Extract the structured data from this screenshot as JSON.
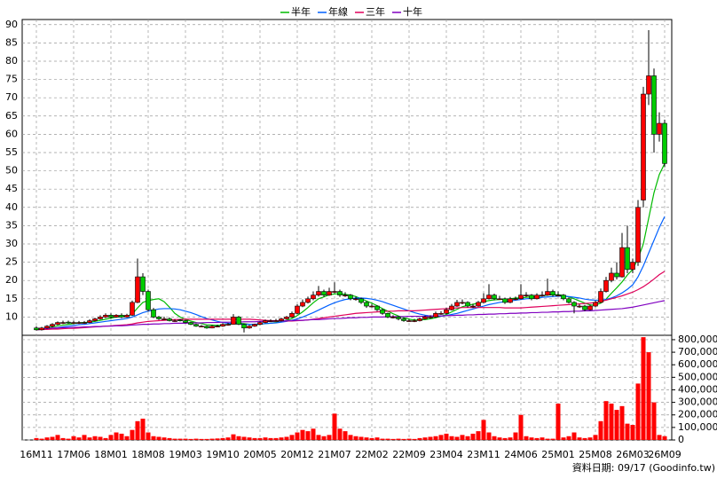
{
  "chart_data": {
    "type": "candlestick",
    "categories": [
      "16M11",
      null,
      null,
      null,
      null,
      null,
      null,
      "17M06",
      null,
      null,
      null,
      null,
      null,
      null,
      "18M01",
      null,
      null,
      null,
      null,
      null,
      null,
      "18M08",
      null,
      null,
      null,
      null,
      null,
      null,
      "19M03",
      null,
      null,
      null,
      null,
      null,
      null,
      "19M10",
      null,
      null,
      null,
      null,
      null,
      null,
      "20M05",
      null,
      null,
      null,
      null,
      null,
      null,
      "20M12",
      null,
      null,
      null,
      null,
      null,
      null,
      "21M07",
      null,
      null,
      null,
      null,
      null,
      null,
      "22M02",
      null,
      null,
      null,
      null,
      null,
      null,
      "22M09",
      null,
      null,
      null,
      null,
      null,
      null,
      "23M04",
      null,
      null,
      null,
      null,
      null,
      null,
      "23M11",
      null,
      null,
      null,
      null,
      null,
      null,
      "24M06",
      null,
      null,
      null,
      null,
      null,
      null,
      "25M01",
      null,
      null,
      null,
      null,
      null,
      null,
      "25M08",
      null,
      null,
      null,
      null,
      null,
      null,
      "26M03",
      null,
      null,
      null,
      null,
      null,
      "26M09"
    ],
    "ohlc": [
      [
        7,
        7.5,
        6.3,
        6.5
      ],
      [
        6.5,
        7.3,
        6.3,
        7
      ],
      [
        7,
        7.8,
        6.8,
        7.5
      ],
      [
        7.5,
        8.3,
        7.2,
        8
      ],
      [
        8,
        8.8,
        7.8,
        8.5
      ],
      [
        8.5,
        9,
        8.1,
        8.5
      ],
      [
        8.6,
        9,
        8.2,
        8.5
      ],
      [
        8.5,
        9,
        8.1,
        8.5
      ],
      [
        8.4,
        8.9,
        8.1,
        8.5
      ],
      [
        8.5,
        8.9,
        8.2,
        8.5
      ],
      [
        8.5,
        9.4,
        8.3,
        9
      ],
      [
        9,
        9.8,
        8.8,
        9.5
      ],
      [
        9.5,
        10.5,
        9.3,
        10
      ],
      [
        10,
        11,
        9.7,
        10.5
      ],
      [
        10.5,
        11,
        9.6,
        10
      ],
      [
        10,
        10.8,
        9.8,
        10.5
      ],
      [
        10.5,
        11,
        9.7,
        10
      ],
      [
        10,
        10.9,
        9.8,
        10.5
      ],
      [
        10.5,
        14.5,
        10.3,
        14
      ],
      [
        14,
        26,
        13.8,
        21
      ],
      [
        21,
        22,
        16,
        17
      ],
      [
        17,
        17.5,
        11.5,
        12
      ],
      [
        12,
        12.5,
        9.7,
        10
      ],
      [
        10,
        10.3,
        9.2,
        9.5
      ],
      [
        9.5,
        10.1,
        9.2,
        9.5
      ],
      [
        9.5,
        9.9,
        8.8,
        9
      ],
      [
        9,
        9.4,
        8.7,
        9
      ],
      [
        9.2,
        9.5,
        8.8,
        9
      ],
      [
        9,
        9.2,
        8.3,
        8.5
      ],
      [
        8.5,
        8.7,
        7.8,
        8
      ],
      [
        8,
        8.2,
        7.3,
        7.5
      ],
      [
        7.5,
        7.8,
        7.2,
        7.5
      ],
      [
        7.5,
        7.7,
        6.8,
        7
      ],
      [
        7,
        7.8,
        6.9,
        7.5
      ],
      [
        7.5,
        7.9,
        7.2,
        7.5
      ],
      [
        7.5,
        8.3,
        7.3,
        8
      ],
      [
        8,
        8.4,
        7.6,
        8
      ],
      [
        8,
        10.8,
        7.9,
        10
      ],
      [
        10,
        10.3,
        7.8,
        8
      ],
      [
        8,
        8.2,
        5.8,
        7
      ],
      [
        7,
        7.8,
        6.8,
        7.5
      ],
      [
        7.5,
        8.2,
        7.3,
        8
      ],
      [
        8,
        8.8,
        7.8,
        8.5
      ],
      [
        8.5,
        9.3,
        8.3,
        9
      ],
      [
        9,
        9.4,
        8.6,
        9
      ],
      [
        9,
        9.5,
        8.7,
        9
      ],
      [
        9,
        9.8,
        8.8,
        9.5
      ],
      [
        9.5,
        10.3,
        9.3,
        10
      ],
      [
        10,
        11.5,
        9.8,
        11
      ],
      [
        11,
        13.5,
        10.8,
        13
      ],
      [
        13,
        14.8,
        12.7,
        14
      ],
      [
        14,
        15.6,
        13.7,
        15
      ],
      [
        15,
        17,
        14.6,
        16
      ],
      [
        16,
        18.5,
        15.6,
        17
      ],
      [
        17,
        17.5,
        15.5,
        16
      ],
      [
        16,
        18,
        15.8,
        17
      ],
      [
        17,
        19.5,
        16.5,
        17
      ],
      [
        17,
        17.5,
        15.5,
        16
      ],
      [
        16,
        16.8,
        15.5,
        16
      ],
      [
        16,
        16.3,
        14.6,
        15
      ],
      [
        15,
        15.6,
        14.5,
        15
      ],
      [
        15,
        15.3,
        13.6,
        14
      ],
      [
        14,
        14.3,
        12.5,
        13
      ],
      [
        13,
        13.6,
        12.6,
        13
      ],
      [
        13,
        13.2,
        11.6,
        12
      ],
      [
        12,
        12.3,
        10.6,
        11
      ],
      [
        11,
        11.2,
        9.7,
        10
      ],
      [
        10,
        10.5,
        9.6,
        10
      ],
      [
        10,
        10.2,
        9.1,
        9.5
      ],
      [
        9.5,
        9.8,
        8.7,
        9
      ],
      [
        9,
        9.4,
        8.7,
        9
      ],
      [
        9,
        9.5,
        8.6,
        9
      ],
      [
        9,
        9.9,
        8.8,
        9.5
      ],
      [
        9.5,
        10.4,
        9.3,
        10
      ],
      [
        10,
        10.5,
        9.6,
        10
      ],
      [
        10,
        11.5,
        9.8,
        11
      ],
      [
        11,
        11.6,
        10.6,
        11
      ],
      [
        11,
        12.5,
        10.8,
        12
      ],
      [
        12,
        13.6,
        11.8,
        13
      ],
      [
        13,
        14.7,
        12.8,
        14
      ],
      [
        14,
        14.8,
        13.5,
        14
      ],
      [
        14,
        14.3,
        12.6,
        13
      ],
      [
        13,
        13.6,
        12.5,
        13
      ],
      [
        13,
        14.4,
        12.8,
        14
      ],
      [
        14,
        16.5,
        13.8,
        15
      ],
      [
        15,
        19,
        14.8,
        16
      ],
      [
        16,
        16.4,
        14.6,
        15
      ],
      [
        15,
        15.8,
        14.7,
        15
      ],
      [
        15,
        15.3,
        13.6,
        14
      ],
      [
        14,
        15.5,
        13.8,
        15
      ],
      [
        15,
        15.6,
        14.6,
        15
      ],
      [
        15,
        19,
        14.8,
        16
      ],
      [
        16,
        16.8,
        15.5,
        16
      ],
      [
        16,
        16.3,
        14.6,
        15
      ],
      [
        15,
        16.5,
        14.8,
        16
      ],
      [
        16,
        17,
        15.6,
        16
      ],
      [
        16,
        20.5,
        15.8,
        17
      ],
      [
        17,
        17.5,
        15.6,
        16
      ],
      [
        16,
        17,
        15.7,
        16
      ],
      [
        16,
        16.3,
        14.6,
        15
      ],
      [
        15,
        15.3,
        13.7,
        14
      ],
      [
        14,
        14.3,
        11,
        13
      ],
      [
        13,
        13.5,
        12.5,
        13
      ],
      [
        13,
        13.3,
        11.6,
        12
      ],
      [
        12,
        13.4,
        11.8,
        13
      ],
      [
        13,
        14.5,
        12.7,
        14
      ],
      [
        14,
        17.8,
        13.8,
        17
      ],
      [
        17,
        21,
        16.7,
        20
      ],
      [
        20,
        23.5,
        19.5,
        22
      ],
      [
        22,
        25,
        20.3,
        21
      ],
      [
        21,
        33,
        20.8,
        29
      ],
      [
        29,
        35,
        22,
        23
      ],
      [
        23,
        26,
        22,
        25
      ],
      [
        25,
        42,
        24,
        40
      ],
      [
        42,
        73,
        40,
        71
      ],
      [
        71,
        88.5,
        68,
        76
      ],
      [
        76,
        78,
        55,
        60
      ],
      [
        60,
        66,
        58,
        63
      ],
      [
        63,
        64,
        51,
        52
      ]
    ],
    "up_color": "#ff0000",
    "down_color": "#00cc00",
    "volume_color": "#ff0000",
    "volume": [
      15000,
      10000,
      20000,
      25000,
      40000,
      15000,
      10000,
      30000,
      20000,
      40000,
      20000,
      30000,
      25000,
      15000,
      40000,
      60000,
      50000,
      30000,
      80000,
      150000,
      170000,
      60000,
      30000,
      25000,
      20000,
      15000,
      10000,
      10000,
      10000,
      8000,
      10000,
      8000,
      8000,
      10000,
      12000,
      15000,
      20000,
      45000,
      30000,
      25000,
      20000,
      15000,
      15000,
      20000,
      15000,
      15000,
      20000,
      25000,
      40000,
      60000,
      80000,
      70000,
      90000,
      40000,
      30000,
      40000,
      210000,
      90000,
      70000,
      40000,
      30000,
      25000,
      20000,
      15000,
      20000,
      10000,
      10000,
      8000,
      10000,
      8000,
      10000,
      8000,
      15000,
      20000,
      25000,
      30000,
      40000,
      50000,
      30000,
      25000,
      40000,
      30000,
      50000,
      70000,
      160000,
      60000,
      30000,
      20000,
      15000,
      20000,
      60000,
      200000,
      30000,
      20000,
      15000,
      20000,
      10000,
      10000,
      290000,
      20000,
      30000,
      60000,
      20000,
      15000,
      20000,
      40000,
      150000,
      310000,
      290000,
      240000,
      270000,
      130000,
      120000,
      450000,
      820000,
      700000,
      300000,
      40000,
      30000
    ],
    "series": [
      {
        "name": "半年",
        "color": "#00bb00",
        "values": [
          6.5,
          6.7,
          7,
          7.3,
          7.6,
          7.8,
          8,
          8.2,
          8.4,
          8.5,
          8.6,
          8.8,
          9.1,
          9.4,
          9.7,
          10,
          10.1,
          10.2,
          10.8,
          12.5,
          14,
          14.5,
          14.8,
          15,
          14.2,
          12.7,
          11,
          10,
          9.3,
          8.9,
          8.5,
          8.2,
          7.9,
          7.8,
          7.7,
          7.8,
          7.9,
          8.2,
          8.3,
          8.2,
          8,
          7.9,
          8,
          8.2,
          8.3,
          8.5,
          8.8,
          9.1,
          9.6,
          10.4,
          11.4,
          12.6,
          13.9,
          15,
          15.5,
          16.1,
          16.3,
          16.4,
          16.2,
          16,
          15.6,
          15,
          14.4,
          13.8,
          13.1,
          12.3,
          11.6,
          10.9,
          10.3,
          9.8,
          9.4,
          9.2,
          9.2,
          9.3,
          9.5,
          9.8,
          10.2,
          10.7,
          11.4,
          12.1,
          12.8,
          13.2,
          13.5,
          13.8,
          14.2,
          14.5,
          14.7,
          14.8,
          14.9,
          15,
          15.2,
          15.2,
          15.4,
          15.5,
          15.6,
          15.8,
          16,
          16.1,
          16.1,
          15.9,
          15.5,
          15,
          14.4,
          13.8,
          13.3,
          13.3,
          13.8,
          14.9,
          16.5,
          18,
          19.6,
          21.5,
          23,
          26,
          30,
          37,
          44,
          49,
          52
        ]
      },
      {
        "name": "年線",
        "color": "#0060ff",
        "values": [
          6.5,
          6.6,
          6.7,
          6.9,
          7.1,
          7.3,
          7.5,
          7.7,
          7.9,
          8,
          8.2,
          8.4,
          8.6,
          8.8,
          9,
          9.2,
          9.4,
          9.6,
          10,
          10.6,
          11.2,
          11.6,
          11.9,
          12.2,
          12.3,
          12.3,
          12.2,
          12,
          11.6,
          11.2,
          10.7,
          10.1,
          9.6,
          9.2,
          8.8,
          8.5,
          8.3,
          8.2,
          8.1,
          8,
          8,
          8,
          8.1,
          8.2,
          8.3,
          8.4,
          8.6,
          8.8,
          9.1,
          9.5,
          10,
          10.6,
          11.2,
          11.9,
          12.6,
          13.3,
          13.9,
          14.4,
          14.8,
          15,
          15.2,
          15.2,
          15.1,
          14.9,
          14.6,
          14.2,
          13.7,
          13.2,
          12.7,
          12.2,
          11.7,
          11.2,
          10.8,
          10.5,
          10.3,
          10.2,
          10.2,
          10.4,
          10.7,
          11,
          11.4,
          11.8,
          12.2,
          12.6,
          13,
          13.4,
          13.7,
          14,
          14.2,
          14.4,
          14.6,
          14.8,
          15,
          15.1,
          15.2,
          15.4,
          15.5,
          15.6,
          15.7,
          15.7,
          15.6,
          15.4,
          15.2,
          14.9,
          14.7,
          14.6,
          14.6,
          14.8,
          15.2,
          15.8,
          16.6,
          17.6,
          18.8,
          21,
          24,
          27.5,
          31,
          34.5,
          37.5
        ]
      },
      {
        "name": "三年",
        "color": "#e0005a",
        "values": [
          6.5,
          6.6,
          6.6,
          6.7,
          6.7,
          6.8,
          6.9,
          6.9,
          7,
          7.1,
          7.2,
          7.3,
          7.4,
          7.5,
          7.6,
          7.7,
          7.8,
          7.9,
          8.1,
          8.4,
          8.6,
          8.8,
          8.9,
          9,
          9.1,
          9.2,
          9.3,
          9.3,
          9.4,
          9.4,
          9.4,
          9.4,
          9.4,
          9.4,
          9.4,
          9.4,
          9.4,
          9.4,
          9.4,
          9.4,
          9.4,
          9.3,
          9.2,
          9.1,
          9,
          9,
          8.9,
          8.9,
          8.9,
          9,
          9.1,
          9.2,
          9.4,
          9.6,
          9.8,
          10,
          10.2,
          10.4,
          10.6,
          10.8,
          11,
          11.1,
          11.2,
          11.3,
          11.4,
          11.5,
          11.6,
          11.6,
          11.7,
          11.7,
          11.7,
          11.7,
          11.8,
          11.9,
          12,
          12.1,
          12.2,
          12.3,
          12.4,
          12.5,
          12.6,
          12.6,
          12.6,
          12.6,
          12.6,
          12.6,
          12.6,
          12.6,
          12.5,
          12.5,
          12.5,
          12.5,
          12.6,
          12.7,
          12.8,
          12.9,
          13,
          13.1,
          13.2,
          13.3,
          13.4,
          13.5,
          13.6,
          13.7,
          13.8,
          14,
          14.3,
          14.6,
          15,
          15.4,
          15.8,
          16.3,
          16.8,
          17.5,
          18.3,
          19.3,
          20.4,
          21.6,
          22.5
        ]
      },
      {
        "name": "十年",
        "color": "#8000c0",
        "values": [
          6.8,
          6.9,
          6.9,
          7,
          7,
          7.1,
          7.1,
          7.2,
          7.2,
          7.3,
          7.3,
          7.4,
          7.4,
          7.5,
          7.5,
          7.6,
          7.6,
          7.7,
          7.8,
          7.9,
          8,
          8,
          8.1,
          8.1,
          8.2,
          8.2,
          8.3,
          8.3,
          8.3,
          8.4,
          8.4,
          8.4,
          8.5,
          8.5,
          8.5,
          8.6,
          8.6,
          8.6,
          8.6,
          8.7,
          8.7,
          8.7,
          8.8,
          8.8,
          8.8,
          8.9,
          8.9,
          9,
          9,
          9.1,
          9.1,
          9.2,
          9.3,
          9.3,
          9.4,
          9.5,
          9.6,
          9.6,
          9.7,
          9.8,
          9.8,
          9.9,
          9.9,
          10,
          10,
          10,
          10.1,
          10.1,
          10.1,
          10.1,
          10.2,
          10.2,
          10.2,
          10.2,
          10.3,
          10.3,
          10.3,
          10.4,
          10.4,
          10.5,
          10.5,
          10.6,
          10.6,
          10.7,
          10.7,
          10.8,
          10.8,
          10.9,
          10.9,
          11,
          11,
          11.1,
          11.1,
          11.2,
          11.2,
          11.3,
          11.3,
          11.4,
          11.4,
          11.5,
          11.5,
          11.6,
          11.6,
          11.7,
          11.7,
          11.8,
          11.9,
          12,
          12.1,
          12.2,
          12.3,
          12.5,
          12.7,
          13,
          13.3,
          13.6,
          13.9,
          14.2,
          14.5
        ]
      }
    ],
    "ylim": [
      5,
      91.4
    ],
    "yticks": [
      10,
      15,
      20,
      25,
      30,
      35,
      40,
      45,
      50,
      55,
      60,
      65,
      70,
      75,
      80,
      85,
      90
    ],
    "y2lim": [
      0,
      835000
    ],
    "y2ticks": [
      {
        "value": 800000,
        "label": "800,000"
      },
      {
        "value": 700000,
        "label": "700,000"
      },
      {
        "value": 600000,
        "label": "600,000"
      },
      {
        "value": 500000,
        "label": "500,000"
      },
      {
        "value": 400000,
        "label": "400,000"
      },
      {
        "value": 300000,
        "label": "300,000"
      },
      {
        "value": 200000,
        "label": "200,000"
      },
      {
        "value": 100000,
        "label": "100,000"
      },
      0
    ],
    "grid": true,
    "source": "資料日期: 09/17  (Goodinfo.tw)"
  }
}
